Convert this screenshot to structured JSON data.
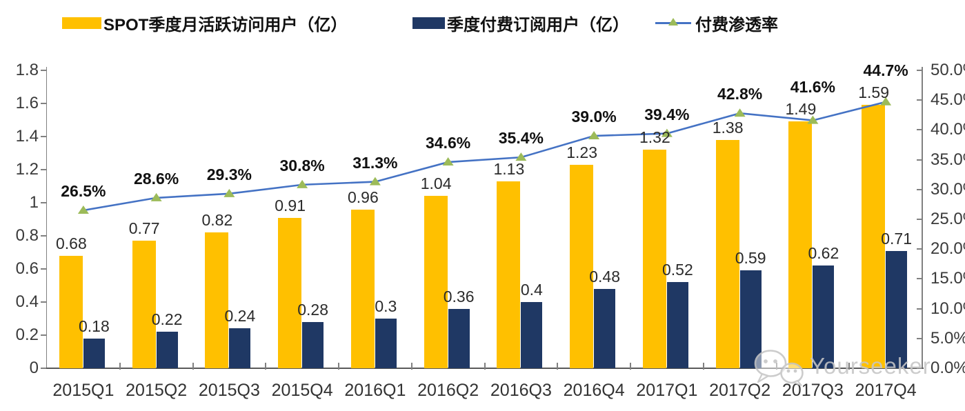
{
  "legend": {
    "items": [
      {
        "label": "SPOT季度月活跃访问用户（亿）",
        "swatch": "bar",
        "color": "#FFC000"
      },
      {
        "label": "季度付费订阅用户（亿）",
        "swatch": "bar",
        "color": "#1F3864"
      },
      {
        "label": "付费渗透率",
        "swatch": "line-triangle",
        "line_color": "#4472C4",
        "marker_color": "#9CBB59"
      }
    ]
  },
  "chart_data": {
    "type": "combo bar+line",
    "categories": [
      "2015Q1",
      "2015Q2",
      "2015Q3",
      "2015Q4",
      "2016Q1",
      "2016Q2",
      "2016Q3",
      "2016Q4",
      "2017Q1",
      "2017Q2",
      "2017Q3",
      "2017Q4"
    ],
    "series": [
      {
        "name": "SPOT季度月活跃访问用户（亿）",
        "type": "bar",
        "axis": "left",
        "color": "#FFC000",
        "values": [
          0.68,
          0.77,
          0.82,
          0.91,
          0.96,
          1.04,
          1.13,
          1.23,
          1.32,
          1.38,
          1.49,
          1.59
        ],
        "labels": [
          "0.68",
          "0.77",
          "0.82",
          "0.91",
          "0.96",
          "1.04",
          "1.13",
          "1.23",
          "1.32",
          "1.38",
          "1.49",
          "1.59"
        ]
      },
      {
        "name": "季度付费订阅用户（亿）",
        "type": "bar",
        "axis": "left",
        "color": "#1F3864",
        "values": [
          0.18,
          0.22,
          0.24,
          0.28,
          0.3,
          0.36,
          0.4,
          0.48,
          0.52,
          0.59,
          0.62,
          0.71
        ],
        "labels": [
          "0.18",
          "0.22",
          "0.24",
          "0.28",
          "0.3",
          "0.36",
          "0.4",
          "0.48",
          "0.52",
          "0.59",
          "0.62",
          "0.71"
        ]
      },
      {
        "name": "付费渗透率",
        "type": "line",
        "axis": "right",
        "color": "#4472C4",
        "marker": "triangle",
        "marker_color": "#9CBB59",
        "values": [
          26.5,
          28.6,
          29.3,
          30.8,
          31.3,
          34.6,
          35.4,
          39.0,
          39.4,
          42.8,
          41.6,
          44.7
        ],
        "labels": [
          "26.5%",
          "28.6%",
          "29.3%",
          "30.8%",
          "31.3%",
          "34.6%",
          "35.4%",
          "39.0%",
          "39.4%",
          "42.8%",
          "41.6%",
          "44.7%"
        ]
      }
    ],
    "left_axis": {
      "min": 0,
      "max": 1.8,
      "step": 0.2,
      "tick_labels": [
        "1.8",
        "1.6",
        "1.4",
        "1.2",
        "1",
        "0.8",
        "0.6",
        "0.4",
        "0.2",
        "0"
      ]
    },
    "right_axis": {
      "min": 0,
      "max": 50,
      "step": 5,
      "tick_labels": [
        "50.0%",
        "45.0%",
        "40.0%",
        "35.0%",
        "30.0%",
        "25.0%",
        "20.0%",
        "15.0%",
        "10.0%",
        "5.0%",
        "0.0%"
      ]
    },
    "grid": false,
    "legend_position": "top"
  },
  "watermark": {
    "text": "Yourseeker",
    "icon": "wechat-icon"
  }
}
